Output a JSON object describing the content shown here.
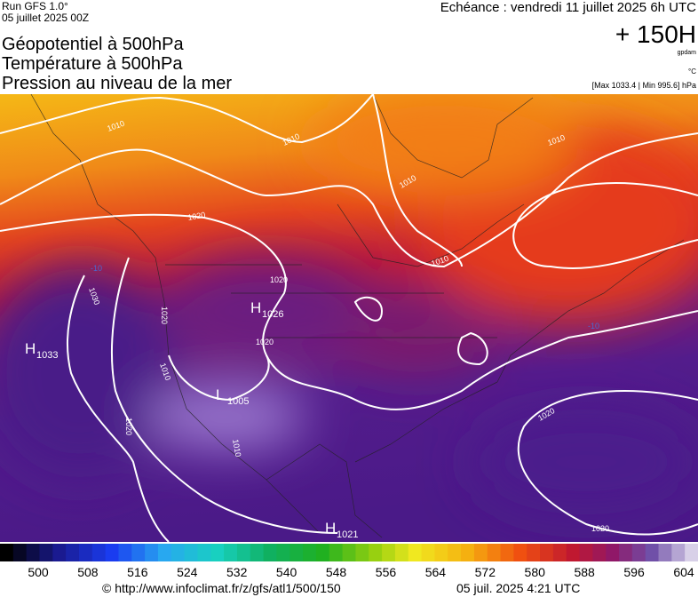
{
  "header": {
    "run": "Run GFS 1.0°",
    "run_date": "05 juillet 2025 00Z",
    "forecast_time": "Echéance : vendredi 11 juillet 2025 6h UTC",
    "lead": "+ 150H",
    "unit_gpdam": "gpdam",
    "unit_temp": "°C",
    "extremes": "[Max 1033.4 | Min 995.6] hPa",
    "titles": [
      "Géopotentiel à 500hPa",
      "Température à 500hPa",
      "Pression au niveau de la mer"
    ]
  },
  "map": {
    "centers": [
      {
        "kind": "H",
        "value": "1033"
      },
      {
        "kind": "H",
        "value": "1026"
      },
      {
        "kind": "L",
        "value": "1005"
      },
      {
        "kind": "H",
        "value": "1021"
      }
    ],
    "contour_labels": [
      "1010",
      "1010",
      "1010",
      "1010",
      "1010",
      "1010",
      "1010",
      "1020",
      "1020",
      "1020",
      "1020",
      "1020",
      "1020",
      "1020",
      "1030",
      "-10",
      "-10"
    ]
  },
  "colorbar": {
    "ticks": [
      "500",
      "508",
      "516",
      "524",
      "532",
      "540",
      "548",
      "556",
      "564",
      "572",
      "580",
      "588",
      "596",
      "604"
    ]
  },
  "footer": {
    "source": "© http://www.infoclimat.fr/z/gfs/atl1/500/150",
    "generated": "05 juil. 2025  4:21 UTC"
  }
}
